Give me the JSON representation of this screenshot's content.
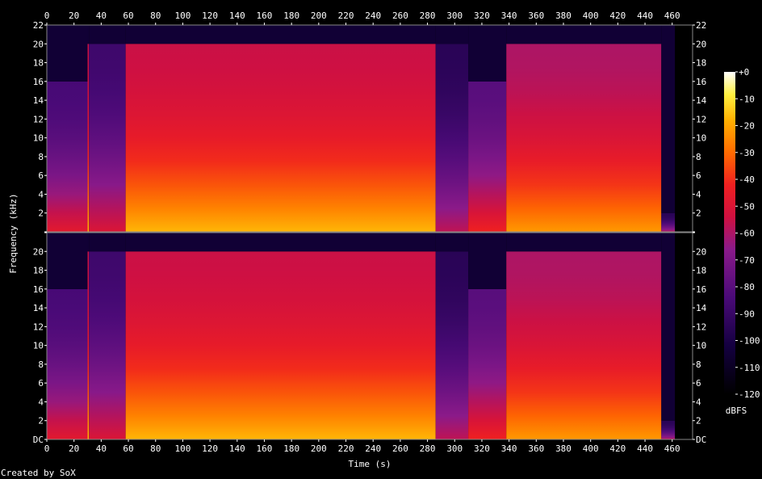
{
  "chart_data": {
    "type": "heatmap",
    "title": "",
    "xlabel": "Time (s)",
    "ylabel": "Frequency (kHz)",
    "xlim": [
      0,
      475
    ],
    "ylim": [
      0,
      22
    ],
    "x_ticks": [
      0,
      20,
      40,
      60,
      80,
      100,
      120,
      140,
      160,
      180,
      200,
      220,
      240,
      260,
      280,
      300,
      320,
      340,
      360,
      380,
      400,
      420,
      440,
      460
    ],
    "y_ticks": [
      {
        "value": 0,
        "label": "DC"
      },
      {
        "value": 2,
        "label": "2"
      },
      {
        "value": 4,
        "label": "4"
      },
      {
        "value": 6,
        "label": "6"
      },
      {
        "value": 8,
        "label": "8"
      },
      {
        "value": 10,
        "label": "10"
      },
      {
        "value": 12,
        "label": "12"
      },
      {
        "value": 14,
        "label": "14"
      },
      {
        "value": 16,
        "label": "16"
      },
      {
        "value": 18,
        "label": "18"
      },
      {
        "value": 20,
        "label": "20"
      },
      {
        "value": 22,
        "label": "22"
      }
    ],
    "channels": [
      "1",
      "2"
    ],
    "colorbar": {
      "label": "dBFS",
      "range": [
        -120,
        0
      ],
      "ticks": [
        {
          "value": 0,
          "label": "+0"
        },
        {
          "value": -10,
          "label": "-10"
        },
        {
          "value": -20,
          "label": "-20"
        },
        {
          "value": -30,
          "label": "-30"
        },
        {
          "value": -40,
          "label": "-40"
        },
        {
          "value": -50,
          "label": "-50"
        },
        {
          "value": -60,
          "label": "-60"
        },
        {
          "value": -70,
          "label": "-70"
        },
        {
          "value": -80,
          "label": "-80"
        },
        {
          "value": -90,
          "label": "-90"
        },
        {
          "value": -100,
          "label": "-100"
        },
        {
          "value": -110,
          "label": "-110"
        },
        {
          "value": -120,
          "label": "-120"
        }
      ]
    },
    "segments": [
      {
        "start": 0,
        "end": 30,
        "level_db": -85,
        "cutoff_khz": 16
      },
      {
        "start": 30,
        "end": 31,
        "level_db": -55,
        "cutoff_khz": 20
      },
      {
        "start": 31,
        "end": 58,
        "level_db": -88,
        "cutoff_khz": 20
      },
      {
        "start": 58,
        "end": 286,
        "level_db": -55,
        "cutoff_khz": 20
      },
      {
        "start": 286,
        "end": 310,
        "level_db": -95,
        "cutoff_khz": 20
      },
      {
        "start": 310,
        "end": 338,
        "level_db": -80,
        "cutoff_khz": 16
      },
      {
        "start": 338,
        "end": 452,
        "level_db": -60,
        "cutoff_khz": 20
      },
      {
        "start": 452,
        "end": 462,
        "level_db": -95,
        "cutoff_khz": 2
      },
      {
        "start": 462,
        "end": 475,
        "level_db": -120,
        "cutoff_khz": 0
      }
    ],
    "grid": false,
    "legend": "colorbar-right"
  },
  "footer": {
    "credit": "Created by SoX"
  }
}
